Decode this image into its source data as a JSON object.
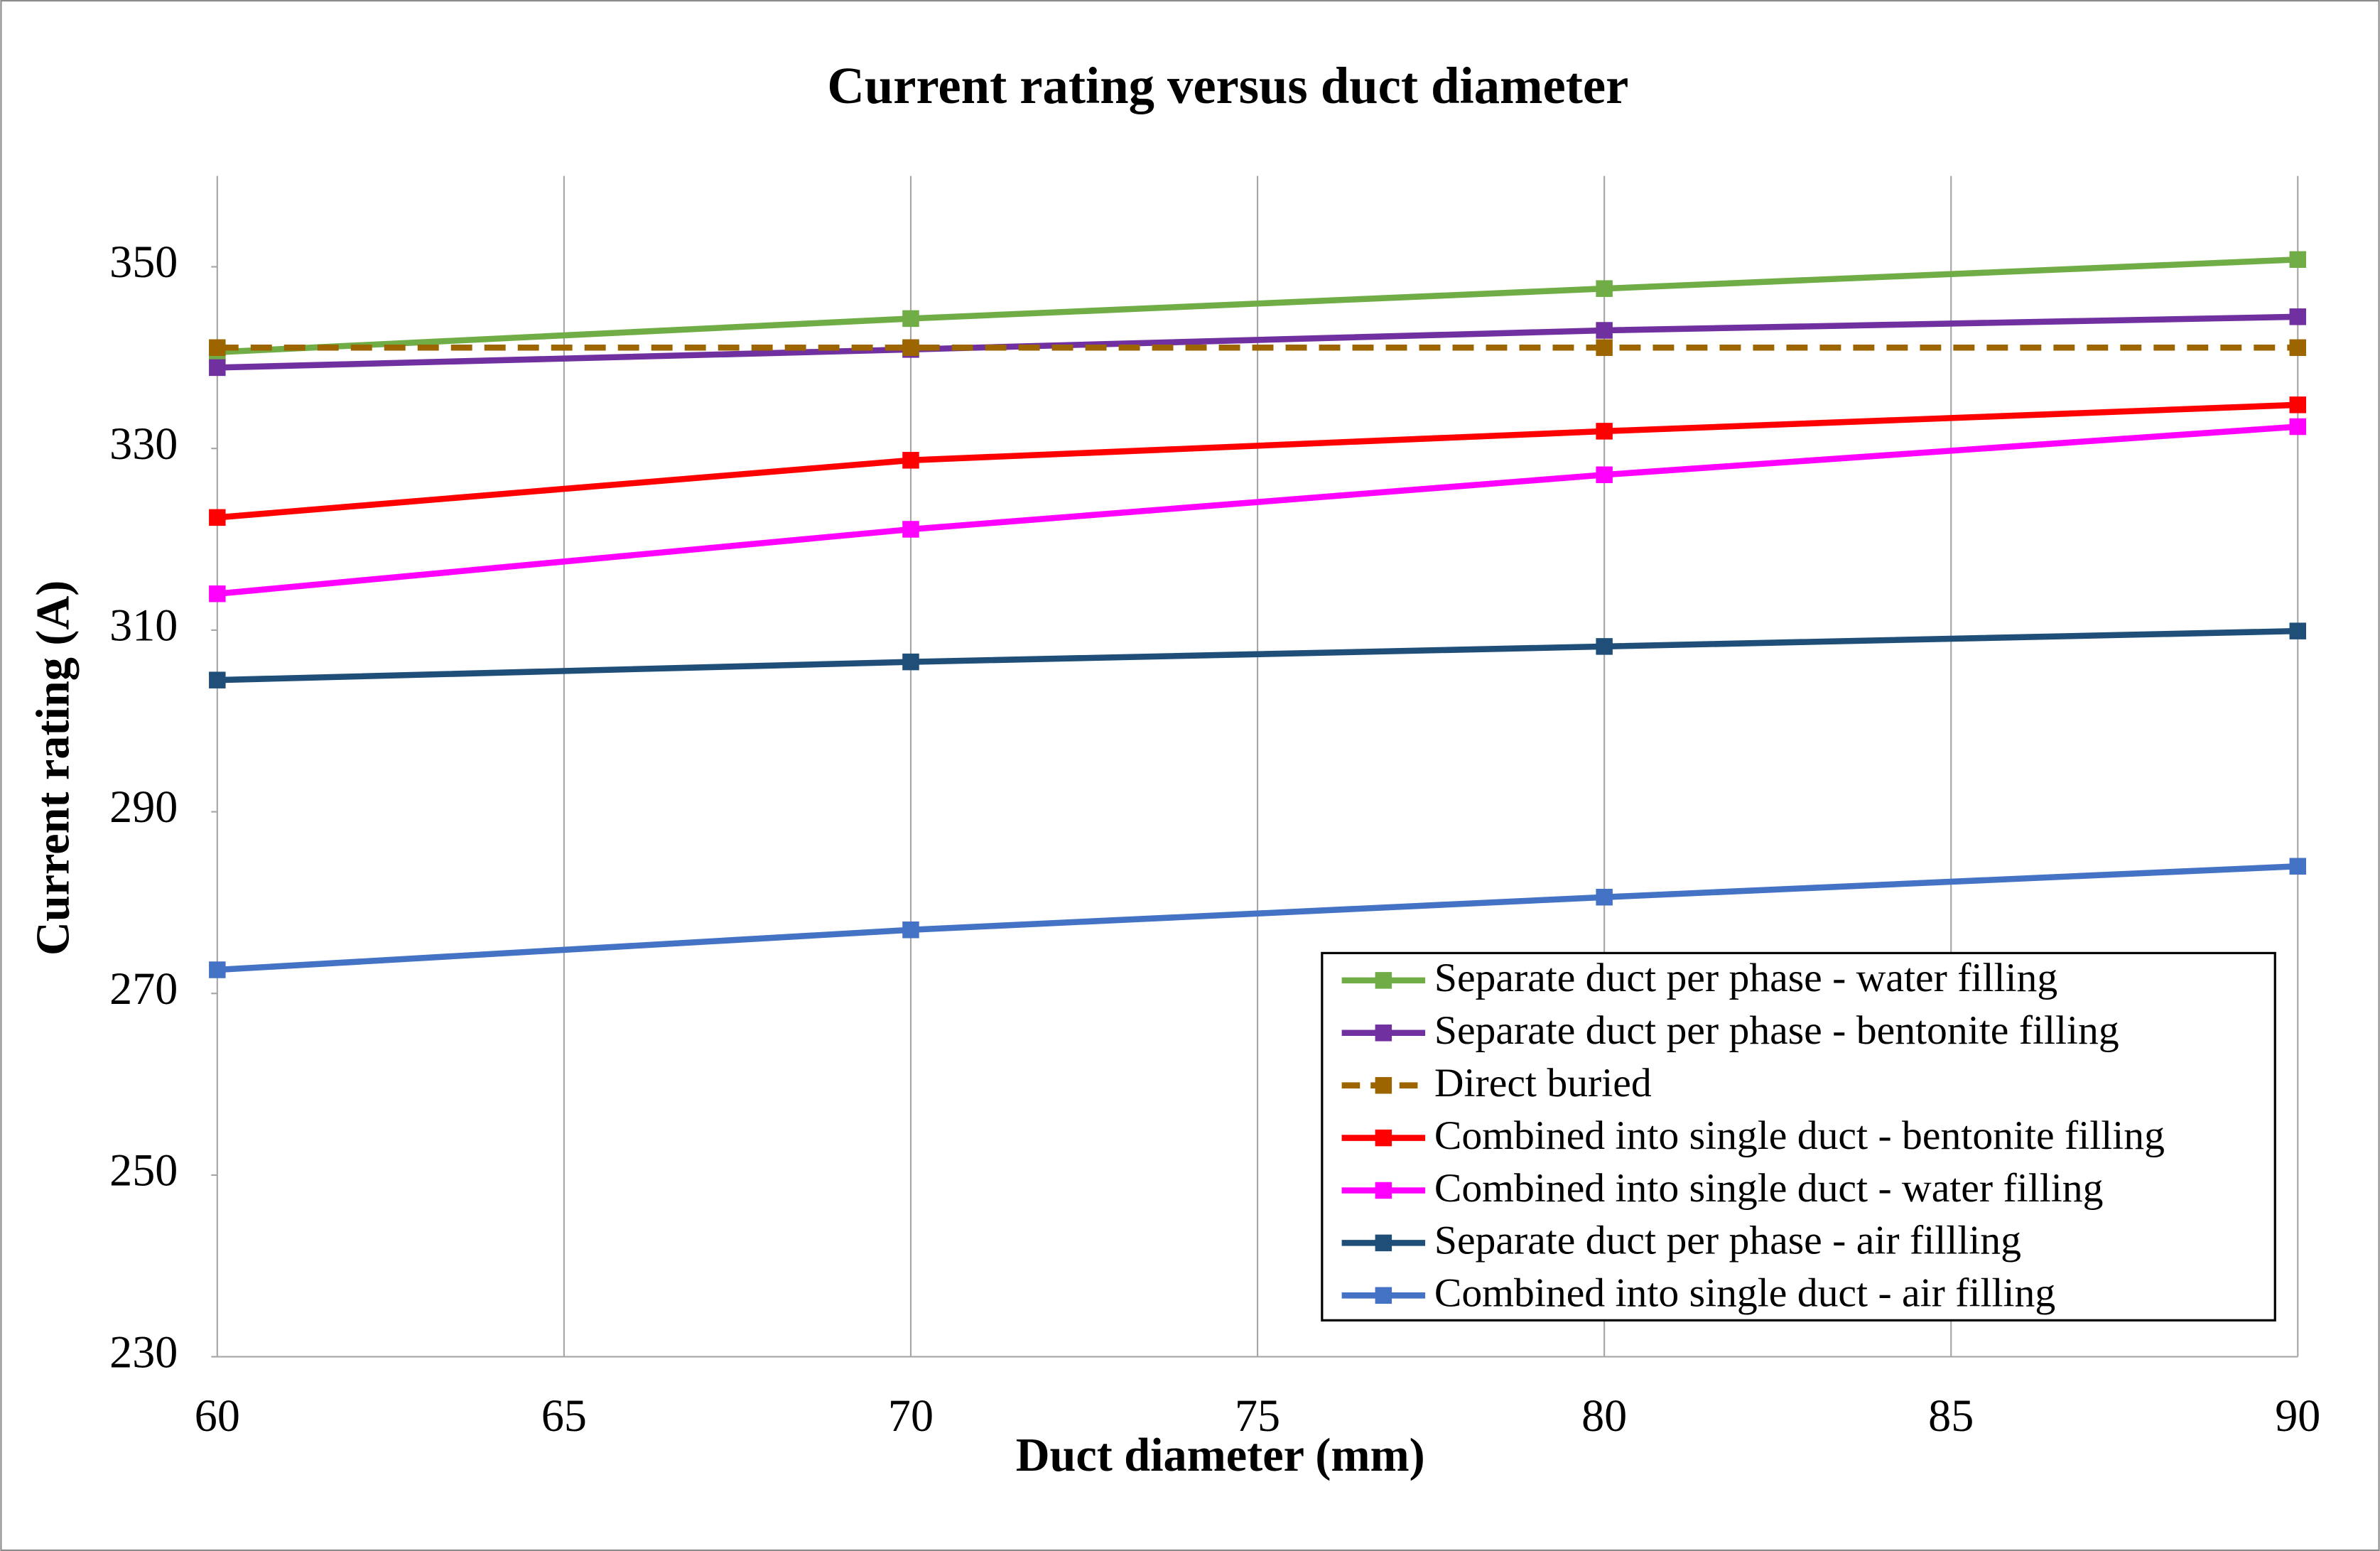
{
  "chart_data": {
    "type": "line",
    "title": "Current rating versus duct diameter",
    "x_label": "Duct diameter (mm)",
    "y_label": "Current rating (A)",
    "x": [
      60,
      70,
      80,
      90
    ],
    "xlim": [
      60,
      90
    ],
    "xticks": [
      60,
      65,
      70,
      75,
      80,
      85,
      90
    ],
    "ylim": [
      230,
      360
    ],
    "yticks": [
      230,
      250,
      270,
      290,
      310,
      330,
      350
    ],
    "grid": "x",
    "legend": "lower right",
    "series": [
      {
        "name": "Separate duct per phase - water filling",
        "color": "#70ad47",
        "dashed": false,
        "values": [
          340.6,
          344.3,
          347.6,
          350.8
        ]
      },
      {
        "name": "Separate duct per phase - bentonite filling",
        "color": "#7030a0",
        "dashed": false,
        "values": [
          338.9,
          340.9,
          343.0,
          344.5
        ]
      },
      {
        "name": "Direct buried",
        "color": "#9c6500",
        "dashed": true,
        "values": [
          341.1,
          341.1,
          341.1,
          341.1
        ]
      },
      {
        "name": "Combined into single duct - bentonite filling",
        "color": "#ff0000",
        "dashed": false,
        "values": [
          322.4,
          328.7,
          331.9,
          334.8
        ]
      },
      {
        "name": "Combined into single duct - water filling",
        "color": "#ff00ff",
        "dashed": false,
        "values": [
          314.0,
          321.1,
          327.1,
          332.4
        ]
      },
      {
        "name": "Separate duct per phase - air fillling",
        "color": "#1f4e79",
        "dashed": false,
        "values": [
          304.5,
          306.5,
          308.2,
          309.9
        ]
      },
      {
        "name": "Combined into single duct - air filling",
        "color": "#4472c4",
        "dashed": false,
        "values": [
          272.6,
          277.0,
          280.6,
          284.0
        ]
      }
    ]
  }
}
